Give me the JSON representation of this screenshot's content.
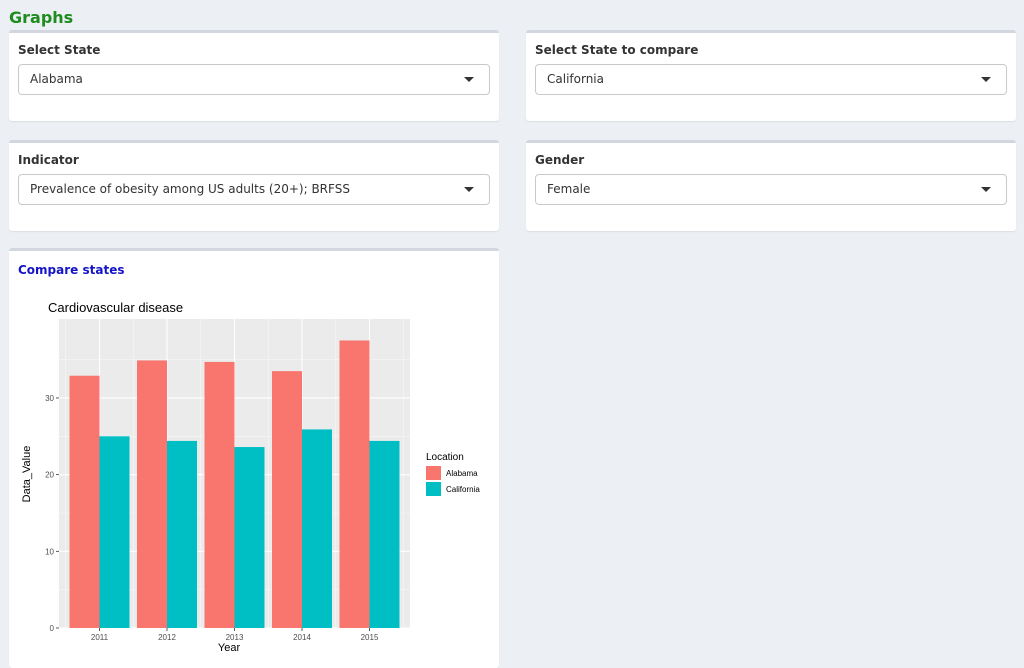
{
  "page": {
    "title": "Graphs"
  },
  "filters": {
    "state": {
      "label": "Select State",
      "value": "Alabama"
    },
    "compare_state": {
      "label": "Select State to compare",
      "value": "California"
    },
    "indicator": {
      "label": "Indicator",
      "value": "Prevalence of obesity among US adults (20+); BRFSS"
    },
    "gender": {
      "label": "Gender",
      "value": "Female"
    }
  },
  "chart_box": {
    "title": "Compare states"
  },
  "chart_data": {
    "type": "bar",
    "title": "Cardiovascular disease",
    "xlabel": "Year",
    "ylabel": "Data_Value",
    "categories": [
      "2011",
      "2012",
      "2013",
      "2014",
      "2015"
    ],
    "series": [
      {
        "name": "Alabama",
        "color": "#f8766d",
        "values": [
          32.9,
          34.9,
          34.7,
          33.5,
          37.5
        ]
      },
      {
        "name": "California",
        "color": "#00bfc4",
        "values": [
          25.0,
          24.4,
          23.6,
          25.9,
          24.4
        ]
      }
    ],
    "ylim": [
      0,
      40.3
    ],
    "yticks": [
      0,
      10,
      20,
      30
    ],
    "legend": {
      "title": "Location",
      "position": "right"
    },
    "grid": true,
    "panel_background": "#ebebeb"
  }
}
